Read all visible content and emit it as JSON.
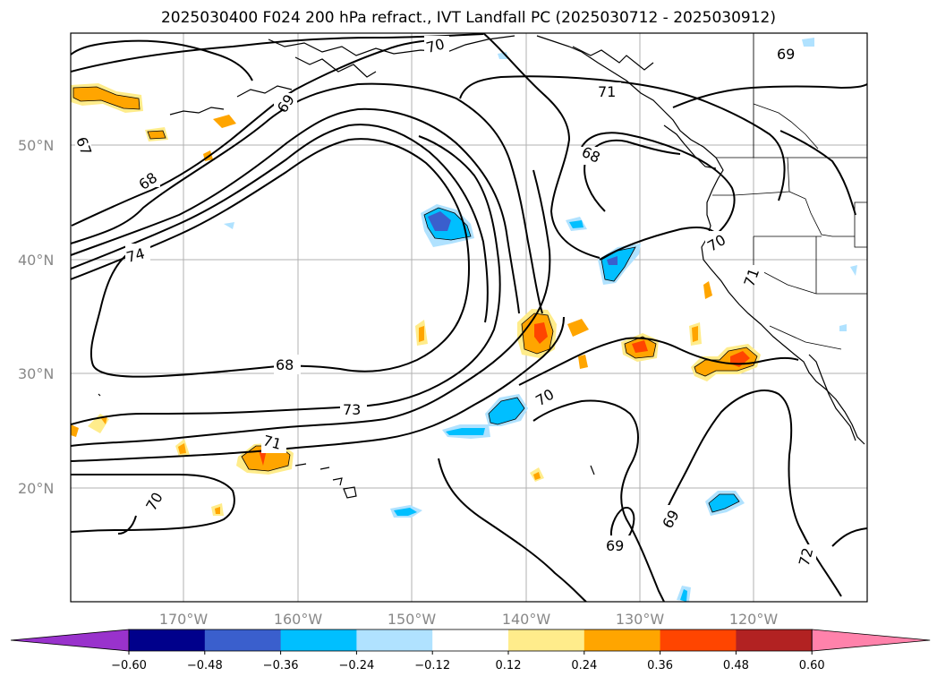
{
  "title": "2025030400 F024 200 hPa refract., IVT Landfall PC (2025030712 - 2025030912)",
  "lat_labels": [
    "50°N",
    "40°N",
    "30°N",
    "20°N"
  ],
  "lon_labels": [
    "170°W",
    "160°W",
    "150°W",
    "140°W",
    "130°W",
    "120°W"
  ],
  "contour_labels": [
    "67",
    "68",
    "69",
    "70",
    "70",
    "70",
    "70",
    "71",
    "71",
    "71",
    "72",
    "73",
    "74",
    "68",
    "68",
    "69",
    "69"
  ],
  "colorbar": {
    "ticks": [
      "−0.60",
      "−0.48",
      "−0.36",
      "−0.24",
      "−0.12",
      "0.12",
      "0.24",
      "0.36",
      "0.48",
      "0.60"
    ],
    "colors": [
      "#9932cc",
      "#00008b",
      "#3a5fcd",
      "#00bfff",
      "#b0e2ff",
      "#ffffff",
      "#ffec8b",
      "#ffa500",
      "#ff4500",
      "#b22222",
      "#ff82ab"
    ]
  }
}
